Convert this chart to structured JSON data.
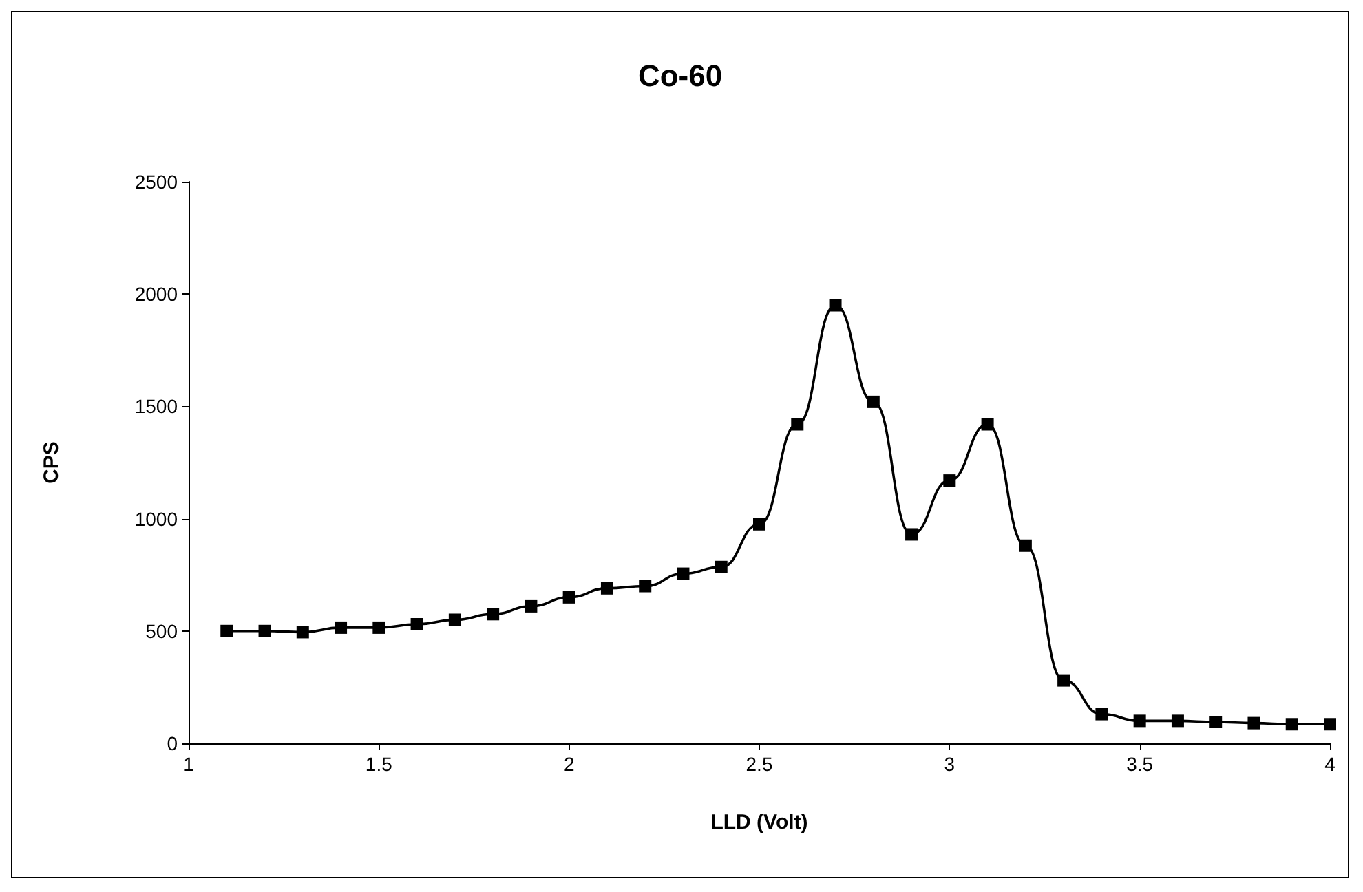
{
  "chart_data": {
    "type": "line",
    "title": "Co-60",
    "xlabel": "LLD (Volt)",
    "ylabel": "CPS",
    "x": [
      1.1,
      1.2,
      1.3,
      1.4,
      1.5,
      1.6,
      1.7,
      1.8,
      1.9,
      2.0,
      2.1,
      2.2,
      2.3,
      2.4,
      2.5,
      2.6,
      2.7,
      2.8,
      2.9,
      3.0,
      3.1,
      3.2,
      3.3,
      3.4,
      3.5,
      3.6,
      3.7,
      3.8,
      3.9,
      4.0
    ],
    "series": [
      {
        "color": "#000000",
        "values": [
          500,
          500,
          495,
          515,
          515,
          530,
          550,
          575,
          610,
          650,
          690,
          700,
          755,
          785,
          975,
          1420,
          1950,
          1520,
          930,
          1170,
          1420,
          880,
          280,
          130,
          100,
          100,
          95,
          90,
          85,
          85
        ]
      }
    ],
    "xlim": [
      1,
      4
    ],
    "xticks": [
      1,
      1.5,
      2,
      2.5,
      3,
      3.5,
      4
    ],
    "ylim": [
      0,
      2500
    ],
    "yticks": [
      0,
      500,
      1000,
      1500,
      2000,
      2500
    ],
    "marker": "square",
    "line_style": "solid"
  }
}
